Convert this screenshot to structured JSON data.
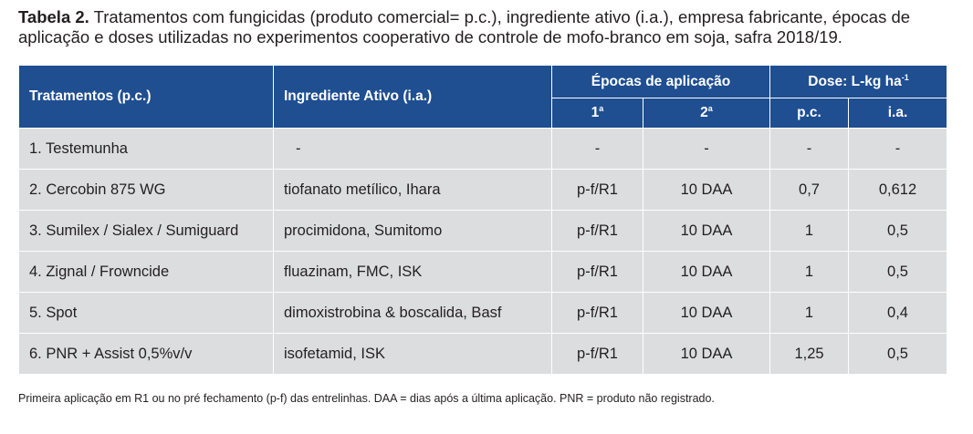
{
  "caption": {
    "label": "Tabela 2.",
    "text": " Tratamentos com fungicidas (produto comercial= p.c.), ingrediente ativo (i.a.), empresa fabricante, épocas de aplicação e doses utilizadas no experimentos cooperativo de controle de mofo-branco em soja, safra 2018/19."
  },
  "table": {
    "headers": {
      "tratamentos": "Tratamentos (p.c.)",
      "ingrediente": "Ingrediente Ativo (i.a.)",
      "epocas": "Épocas de aplicação",
      "dose": "Dose:  L-kg ha",
      "dose_sup": "-1",
      "epoca1": "1",
      "epoca1_sup": "a",
      "epoca2": "2",
      "epoca2_sup": "a",
      "pc": "p.c.",
      "ia": "i.a."
    },
    "rows": [
      {
        "tratamento": "1. Testemunha",
        "ingrediente": "-",
        "epoca1": "-",
        "epoca2": "-",
        "pc": "-",
        "ia": "-"
      },
      {
        "tratamento": "2. Cercobin 875 WG",
        "ingrediente": "tiofanato metílico, Ihara",
        "epoca1": "p-f/R1",
        "epoca2": "10 DAA",
        "pc": "0,7",
        "ia": "0,612"
      },
      {
        "tratamento": "3. Sumilex / Sialex / Sumiguard",
        "ingrediente": "procimidona, Sumitomo",
        "epoca1": "p-f/R1",
        "epoca2": "10 DAA",
        "pc": "1",
        "ia": "0,5"
      },
      {
        "tratamento": "4. Zignal / Frowncide",
        "ingrediente": "fluazinam, FMC, ISK",
        "epoca1": "p-f/R1",
        "epoca2": "10 DAA",
        "pc": "1",
        "ia": "0,5"
      },
      {
        "tratamento": "5. Spot",
        "ingrediente": "dimoxistrobina & boscalida, Basf",
        "epoca1": "p-f/R1",
        "epoca2": "10 DAA",
        "pc": "1",
        "ia": "0,4"
      },
      {
        "tratamento": "6. PNR + Assist 0,5%v/v",
        "ingrediente": "isofetamid, ISK",
        "epoca1": "p-f/R1",
        "epoca2": "10 DAA",
        "pc": "1,25",
        "ia": "0,5"
      }
    ]
  },
  "footnote": "Primeira aplicação em R1 ou no pré fechamento (p-f) das entrelinhas. DAA = dias após a última aplicação. PNR = produto não registrado.",
  "colors": {
    "header_bg": "#1f4e91",
    "cell_bg": "#dcdddf"
  }
}
